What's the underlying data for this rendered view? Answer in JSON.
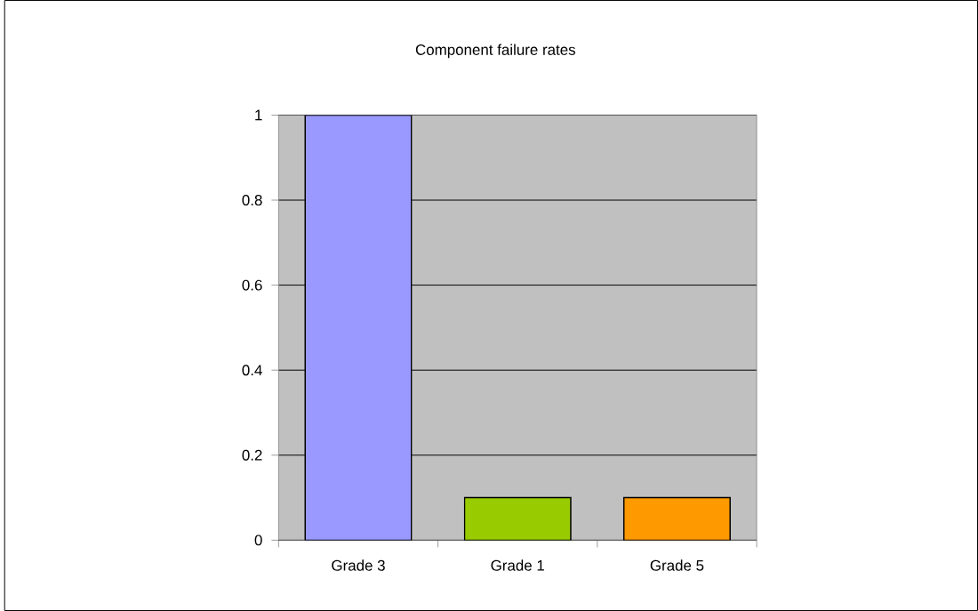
{
  "chart_data": {
    "type": "bar",
    "title": "Component failure rates",
    "categories": [
      "Grade 3",
      "Grade 1",
      "Grade 5"
    ],
    "values": [
      1,
      0.1,
      0.1
    ],
    "colors": [
      "#9999ff",
      "#99cc00",
      "#ff9900"
    ],
    "ylim": [
      0,
      1
    ],
    "yticks": [
      0,
      0.2,
      0.4,
      0.6,
      0.8,
      1
    ],
    "grid": "y"
  }
}
